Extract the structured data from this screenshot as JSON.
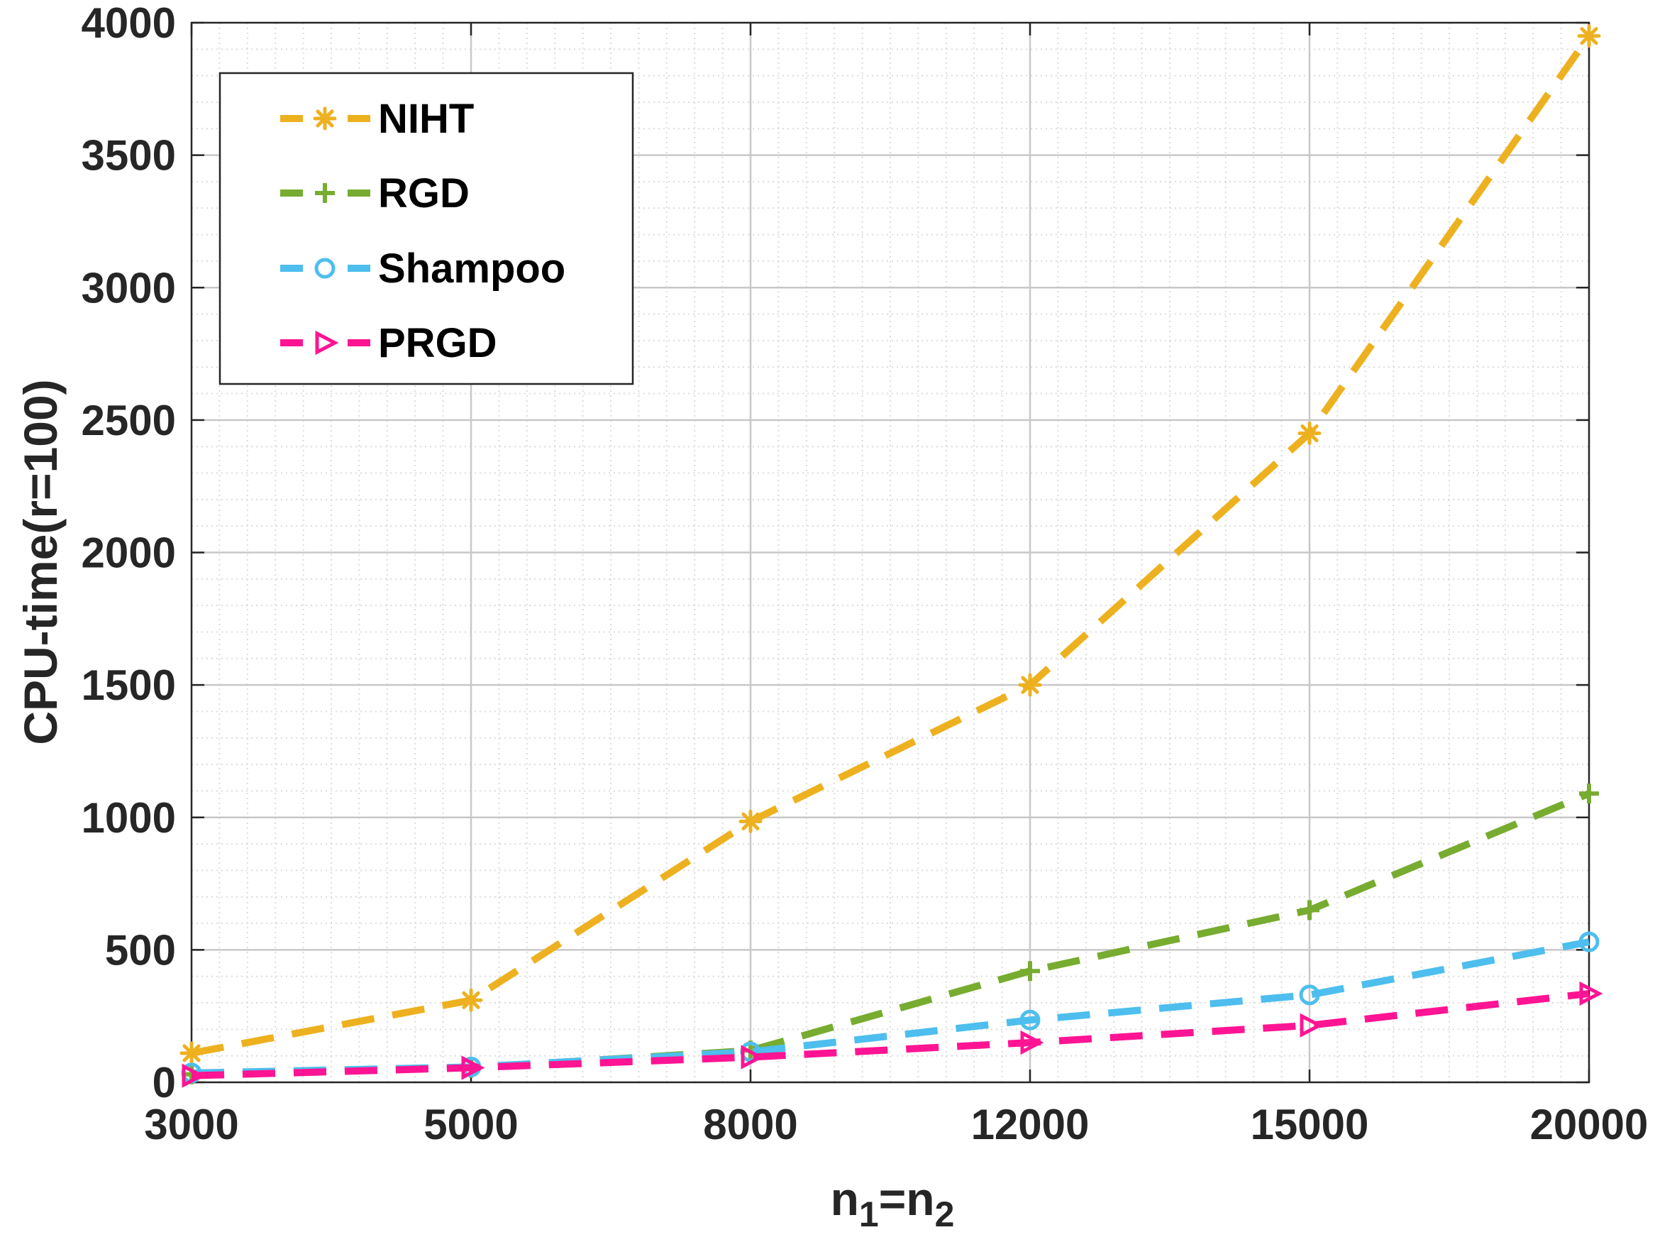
{
  "chart_data": {
    "type": "line",
    "title": "",
    "xlabel": "n",
    "xlabel_sub1": "1",
    "xlabel_eq": "=n",
    "xlabel_sub2": "2",
    "ylabel": "CPU-time(r=100)",
    "categories": [
      "3000",
      "5000",
      "8000",
      "12000",
      "15000",
      "20000"
    ],
    "x": [
      3000,
      5000,
      8000,
      12000,
      15000,
      20000
    ],
    "ylim": [
      0,
      4000
    ],
    "yticks": [
      "0",
      "500",
      "1000",
      "1500",
      "2000",
      "2500",
      "3000",
      "3500",
      "4000"
    ],
    "grid": true,
    "legend_position": "top-left",
    "series": [
      {
        "name": "NIHT",
        "color": "#EDB120",
        "marker": "asterisk",
        "values": [
          110,
          310,
          985,
          1500,
          2450,
          3950
        ]
      },
      {
        "name": "RGD",
        "color": "#77AC30",
        "marker": "plus",
        "values": [
          30,
          55,
          120,
          420,
          650,
          1090
        ]
      },
      {
        "name": "Shampoo",
        "color": "#4DBEEE",
        "marker": "circle",
        "values": [
          35,
          58,
          115,
          235,
          330,
          530
        ]
      },
      {
        "name": "PRGD",
        "color": "#FF1493",
        "marker": "triangle-right",
        "values": [
          25,
          55,
          95,
          150,
          215,
          335
        ]
      }
    ]
  }
}
